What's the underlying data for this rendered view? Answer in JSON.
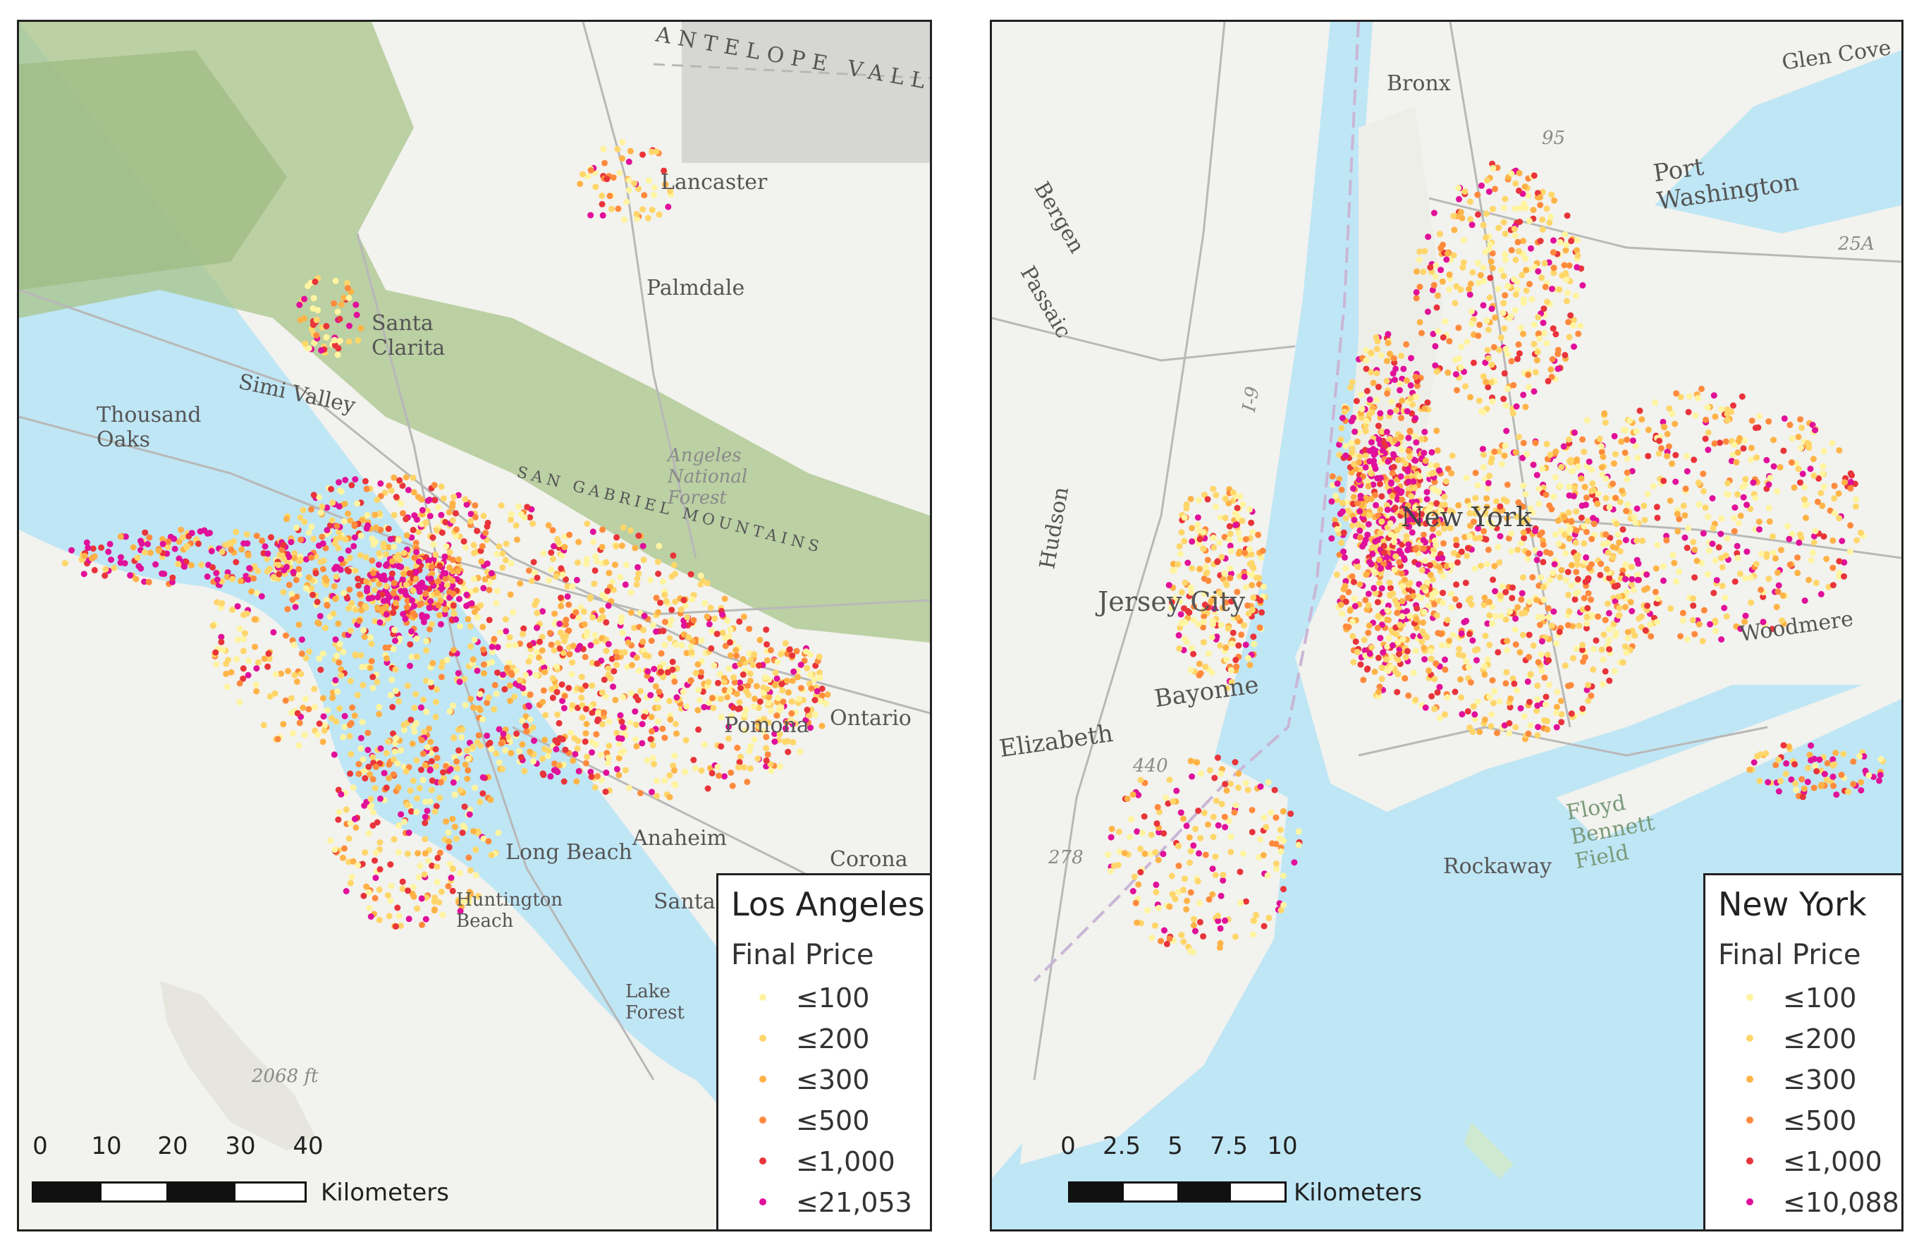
{
  "colors": {
    "water": "#bfe6f5",
    "land": "#f2f2ee",
    "mountains": "#a8c48a",
    "roads": "#b8b8b8",
    "le100": "#fff4a0",
    "le200": "#ffd66a",
    "le300": "#ffb347",
    "le500": "#ff8a3d",
    "le1000": "#e8343a",
    "top": "#e0109a"
  },
  "la": {
    "legend_title": "Los Angeles",
    "legend_subtitle": "Final Price",
    "legend_items": [
      {
        "label": "≤100",
        "color_key": "le100"
      },
      {
        "label": "≤200",
        "color_key": "le200"
      },
      {
        "label": "≤300",
        "color_key": "le300"
      },
      {
        "label": "≤500",
        "color_key": "le500"
      },
      {
        "label": "≤1,000",
        "color_key": "le1000"
      },
      {
        "label": "≤21,053",
        "color_key": "top"
      }
    ],
    "scale_ticks": [
      "0",
      "10",
      "20",
      "30",
      "40"
    ],
    "scale_unit": "Kilometers",
    "places": [
      "Lancaster",
      "Palmdale",
      "Santa Clarita",
      "Simi Valley",
      "Thousand Oaks",
      "Ontario",
      "Anaheim",
      "Huntington Beach",
      "Long Beach",
      "Santa",
      "Lake Forest",
      "Corona",
      "Pomona",
      "ANTELOPE VALLEY",
      "SAN GABRIEL MOUNTAINS",
      "Los Angeles",
      "Angeles National Forest",
      "2068 ft"
    ]
  },
  "ny": {
    "legend_title": "New York",
    "legend_subtitle": "Final Price",
    "legend_items": [
      {
        "label": "≤100",
        "color_key": "le100"
      },
      {
        "label": "≤200",
        "color_key": "le200"
      },
      {
        "label": "≤300",
        "color_key": "le300"
      },
      {
        "label": "≤500",
        "color_key": "le500"
      },
      {
        "label": "≤1,000",
        "color_key": "le1000"
      },
      {
        "label": "≤10,088",
        "color_key": "top"
      }
    ],
    "scale_ticks": [
      "0",
      "2.5",
      "5",
      "7.5",
      "10"
    ],
    "scale_unit": "Kilometers",
    "places": [
      "Bronx",
      "Glen Cove",
      "Port Washington",
      "Bergen",
      "Passaic",
      "Hudson",
      "Jersey City",
      "Bayonne",
      "Elizabeth",
      "New York",
      "Woodmere",
      "Floyd Bennett Field",
      "Rockaway",
      "95",
      "25A",
      "440",
      "278",
      "I-9"
    ]
  }
}
